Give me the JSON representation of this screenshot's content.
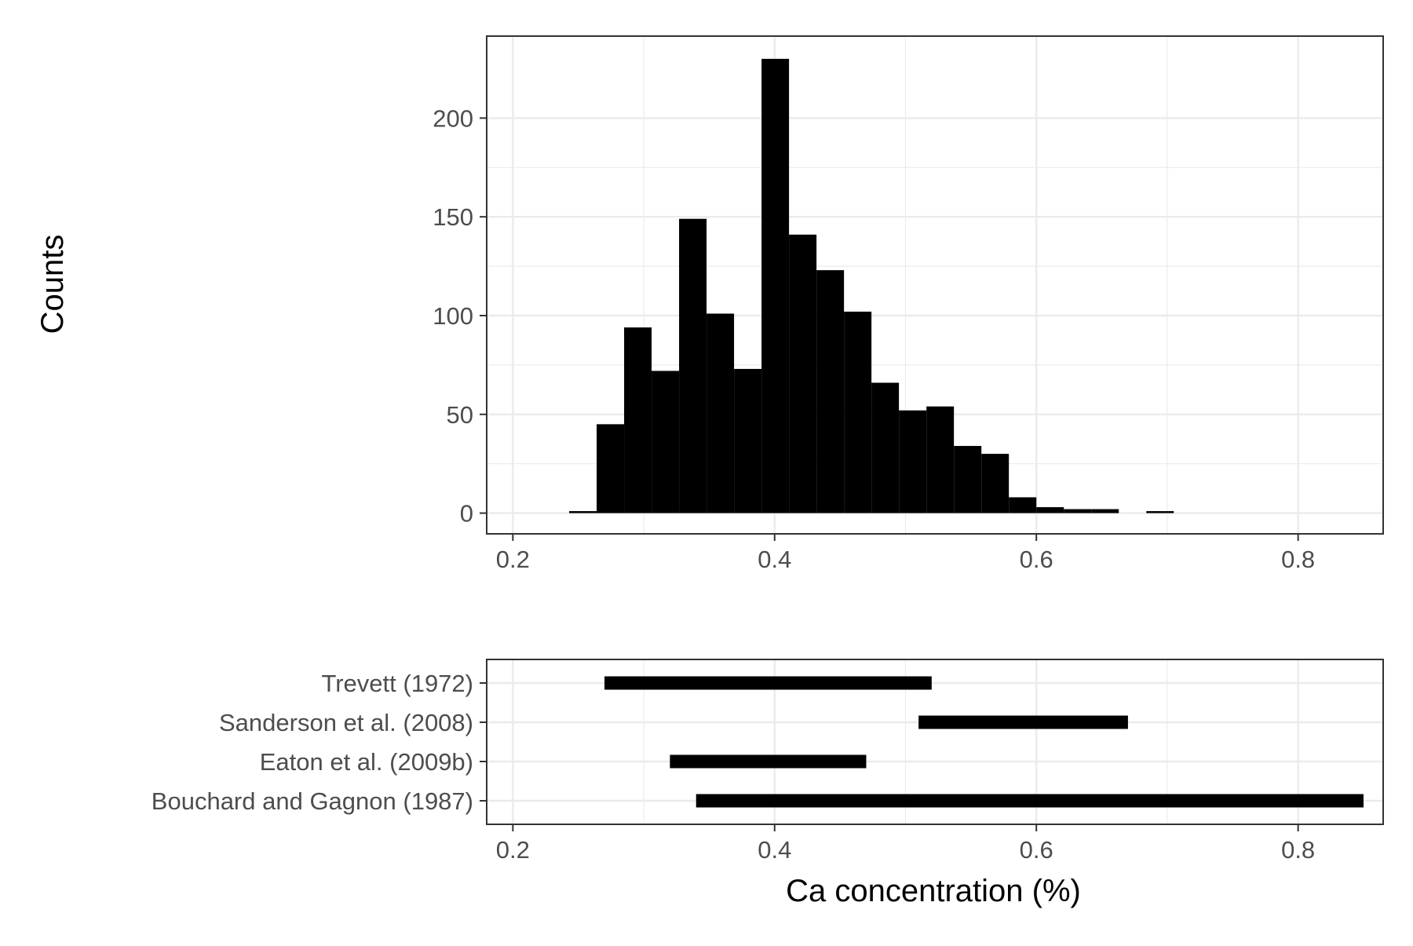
{
  "chart_data": [
    {
      "type": "bar",
      "subtype": "histogram",
      "xlabel": "",
      "ylabel": "Counts",
      "xlim": [
        0.18,
        0.865
      ],
      "ylim": [
        -10.5,
        241.5
      ],
      "x_ticks": [
        0.2,
        0.4,
        0.6,
        0.8
      ],
      "x_tick_labels": [
        "0.2",
        "0.4",
        "0.6",
        "0.8"
      ],
      "y_ticks": [
        0,
        50,
        100,
        150,
        200
      ],
      "y_tick_labels": [
        "0",
        "50",
        "100",
        "150",
        "200"
      ],
      "grid": true,
      "bin_width": 0.021,
      "bins": [
        {
          "x0": 0.243,
          "x1": 0.264,
          "count": 1
        },
        {
          "x0": 0.264,
          "x1": 0.285,
          "count": 45
        },
        {
          "x0": 0.285,
          "x1": 0.306,
          "count": 94
        },
        {
          "x0": 0.306,
          "x1": 0.327,
          "count": 72
        },
        {
          "x0": 0.327,
          "x1": 0.348,
          "count": 149
        },
        {
          "x0": 0.348,
          "x1": 0.369,
          "count": 101
        },
        {
          "x0": 0.369,
          "x1": 0.39,
          "count": 73
        },
        {
          "x0": 0.39,
          "x1": 0.411,
          "count": 230
        },
        {
          "x0": 0.411,
          "x1": 0.432,
          "count": 141
        },
        {
          "x0": 0.432,
          "x1": 0.453,
          "count": 123
        },
        {
          "x0": 0.453,
          "x1": 0.474,
          "count": 102
        },
        {
          "x0": 0.474,
          "x1": 0.495,
          "count": 66
        },
        {
          "x0": 0.495,
          "x1": 0.516,
          "count": 52
        },
        {
          "x0": 0.516,
          "x1": 0.537,
          "count": 54
        },
        {
          "x0": 0.537,
          "x1": 0.558,
          "count": 34
        },
        {
          "x0": 0.558,
          "x1": 0.579,
          "count": 30
        },
        {
          "x0": 0.579,
          "x1": 0.6,
          "count": 8
        },
        {
          "x0": 0.6,
          "x1": 0.621,
          "count": 3
        },
        {
          "x0": 0.621,
          "x1": 0.642,
          "count": 2
        },
        {
          "x0": 0.642,
          "x1": 0.663,
          "count": 2
        },
        {
          "x0": 0.663,
          "x1": 0.684,
          "count": 0
        },
        {
          "x0": 0.684,
          "x1": 0.705,
          "count": 1
        }
      ],
      "bar_color": "#000000"
    },
    {
      "type": "range",
      "xlabel": "Ca concentration (%)",
      "ylabel": "",
      "xlim": [
        0.18,
        0.865
      ],
      "x_ticks": [
        0.2,
        0.4,
        0.6,
        0.8
      ],
      "x_tick_labels": [
        "0.2",
        "0.4",
        "0.6",
        "0.8"
      ],
      "grid": true,
      "ranges": [
        {
          "label": "Trevett (1972)",
          "min": 0.27,
          "max": 0.52
        },
        {
          "label": "Sanderson et al. (2008)",
          "min": 0.51,
          "max": 0.67
        },
        {
          "label": "Eaton et al. (2009b)",
          "min": 0.32,
          "max": 0.47
        },
        {
          "label": "Bouchard and Gagnon (1987)",
          "min": 0.34,
          "max": 0.85
        }
      ],
      "bar_color": "#000000"
    }
  ]
}
